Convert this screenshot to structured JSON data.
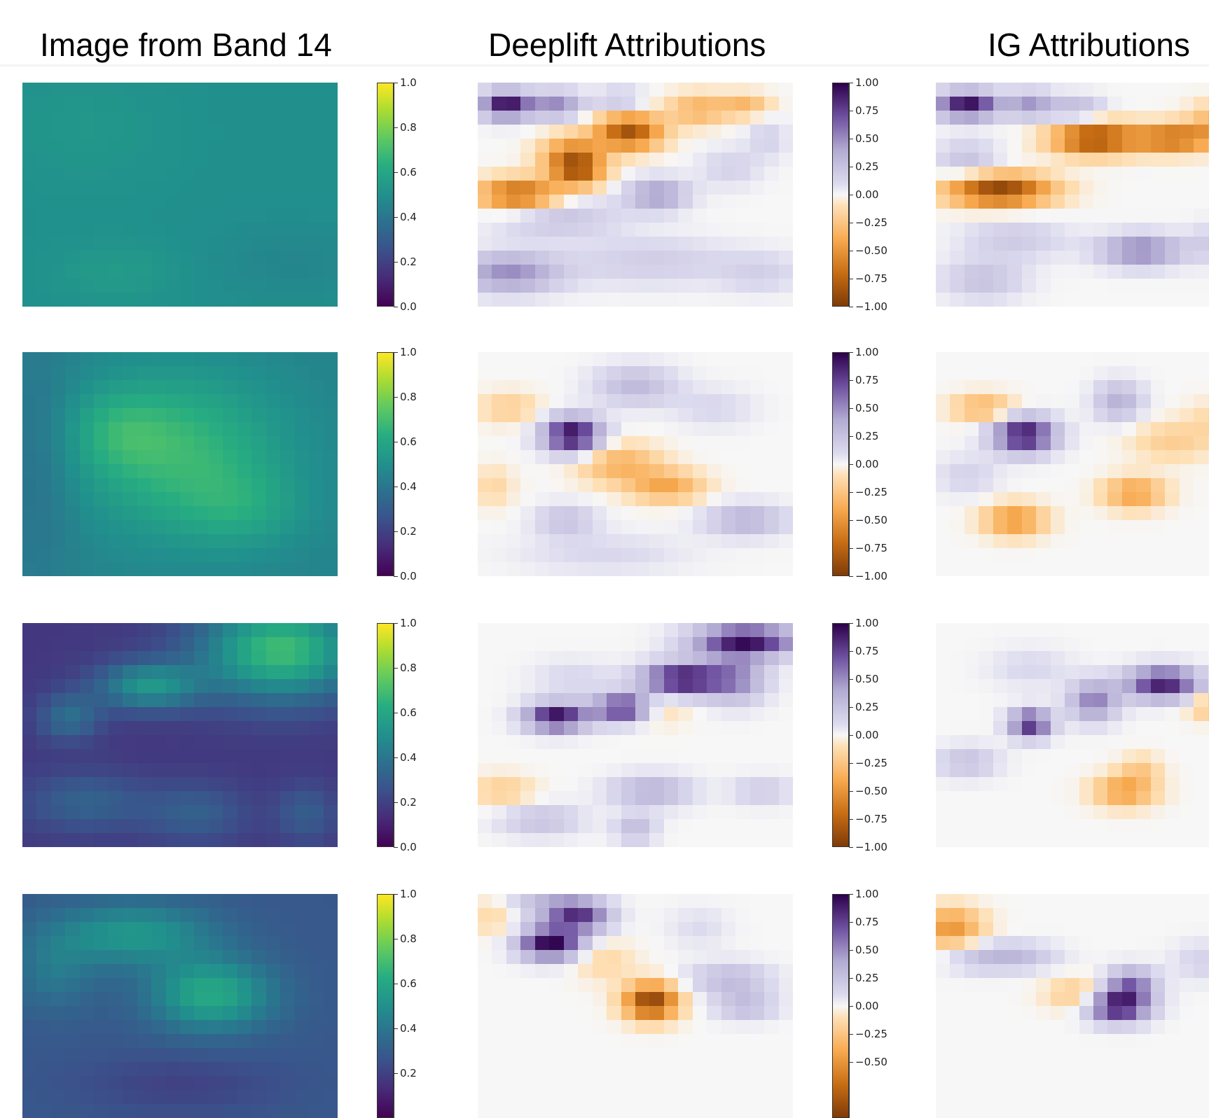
{
  "chart_data": {
    "type": "heatmap",
    "column_titles": [
      "Image from Band 14",
      "Deeplift Attributions",
      "IG Attributions"
    ],
    "colorbars": {
      "image": {
        "colormap": "viridis",
        "range": [
          0.0,
          1.0
        ],
        "tick_labels": [
          "0.0",
          "0.2",
          "0.4",
          "0.6",
          "0.8",
          "1.0"
        ]
      },
      "attribution": {
        "colormap": "PuOr",
        "range": [
          -1.0,
          1.0
        ],
        "tick_labels": [
          "−1.00",
          "−0.75",
          "−0.50",
          "−0.25",
          "0.00",
          "0.25",
          "0.50",
          "0.75",
          "1.00"
        ]
      }
    },
    "grid": {
      "cols": 22,
      "rows": 16
    },
    "rows": [
      {
        "image": {
          "base": 0.5,
          "blobs": [
            [
              0.3,
              0.85,
              3,
              1.5,
              0.05
            ],
            [
              0.2,
              0.2,
              4,
              3,
              0.03
            ],
            [
              0.85,
              0.8,
              4,
              2,
              -0.04
            ]
          ]
        },
        "deeplift": {
          "blobs": [
            [
              0.09,
              0.1,
              1.2,
              0.7,
              0.95
            ],
            [
              0.25,
              0.1,
              1.3,
              0.7,
              0.5
            ],
            [
              0.45,
              0.08,
              1.2,
              0.6,
              0.25
            ],
            [
              0.7,
              0.12,
              1.5,
              0.8,
              -0.35
            ],
            [
              0.85,
              0.1,
              1.2,
              0.6,
              -0.3
            ],
            [
              0.48,
              0.22,
              1.6,
              0.9,
              -0.85
            ],
            [
              0.3,
              0.33,
              1.5,
              1,
              -0.6
            ],
            [
              0.13,
              0.5,
              2,
              0.8,
              -0.75
            ],
            [
              0.32,
              0.4,
              1.2,
              0.8,
              -0.55
            ],
            [
              0.57,
              0.5,
              1.5,
              0.8,
              0.45
            ],
            [
              0.25,
              0.6,
              3,
              1,
              0.25
            ],
            [
              0.8,
              0.38,
              1.5,
              1,
              0.15
            ],
            [
              0.1,
              0.85,
              2.5,
              1,
              0.5
            ],
            [
              0.55,
              0.8,
              4,
              1.2,
              0.18
            ],
            [
              0.9,
              0.85,
              2,
              1,
              0.15
            ],
            [
              0.92,
              0.25,
              1,
              1,
              0.15
            ]
          ]
        },
        "ig": {
          "blobs": [
            [
              0.1,
              0.1,
              1.5,
              0.7,
              0.95
            ],
            [
              0.3,
              0.1,
              1.2,
              0.7,
              0.45
            ],
            [
              0.45,
              0.12,
              1.3,
              0.7,
              0.3
            ],
            [
              0.5,
              0.25,
              2,
              0.8,
              -0.9
            ],
            [
              0.75,
              0.25,
              2,
              0.7,
              -0.7
            ],
            [
              0.9,
              0.18,
              1.5,
              1,
              -0.35
            ],
            [
              0.2,
              0.48,
              2.5,
              0.8,
              -0.95
            ],
            [
              0.1,
              0.35,
              1.5,
              1,
              0.25
            ],
            [
              0.65,
              0.75,
              2,
              0.8,
              0.55
            ],
            [
              0.25,
              0.7,
              2.5,
              1,
              0.2
            ],
            [
              0.15,
              0.88,
              2,
              1,
              0.25
            ],
            [
              0.9,
              0.72,
              1.5,
              1,
              0.2
            ]
          ]
        }
      },
      {
        "image": {
          "base": 0.45,
          "blobs": [
            [
              0.5,
              0.45,
              5,
              4,
              0.22
            ],
            [
              0.3,
              0.35,
              2.5,
              2,
              0.1
            ],
            [
              0.7,
              0.7,
              3,
              2,
              0.1
            ],
            [
              0.05,
              0.5,
              2,
              6,
              -0.08
            ]
          ]
        },
        "deeplift": {
          "blobs": [
            [
              0.3,
              0.37,
              1.4,
              0.9,
              1.0
            ],
            [
              0.5,
              0.15,
              2,
              1,
              0.3
            ],
            [
              0.75,
              0.25,
              2,
              1,
              0.12
            ],
            [
              0.45,
              0.5,
              2,
              1,
              -0.35
            ],
            [
              0.6,
              0.6,
              1.8,
              0.8,
              -0.4
            ],
            [
              0.1,
              0.25,
              1.5,
              0.8,
              -0.2
            ],
            [
              0.28,
              0.75,
              1.5,
              0.8,
              0.25
            ],
            [
              0.85,
              0.75,
              2,
              0.8,
              0.35
            ],
            [
              0.4,
              0.9,
              4,
              1,
              0.12
            ],
            [
              0.05,
              0.6,
              1,
              1,
              -0.15
            ]
          ]
        },
        "ig": {
          "blobs": [
            [
              0.28,
              0.37,
              1.5,
              0.9,
              0.95
            ],
            [
              0.58,
              0.22,
              1.2,
              1,
              0.35
            ],
            [
              0.15,
              0.25,
              1.5,
              0.7,
              -0.35
            ],
            [
              0.63,
              0.63,
              1.5,
              0.8,
              -0.45
            ],
            [
              0.25,
              0.75,
              1.5,
              0.8,
              -0.5
            ],
            [
              0.75,
              0.4,
              2,
              1,
              -0.2
            ],
            [
              0.1,
              0.55,
              1.5,
              1,
              0.15
            ],
            [
              0.9,
              0.3,
              1.5,
              1,
              -0.15
            ]
          ]
        }
      },
      {
        "image": {
          "base": 0.17,
          "blobs": [
            [
              0.82,
              0.12,
              4,
              2.5,
              0.52
            ],
            [
              0.4,
              0.28,
              2.5,
              1.2,
              0.35
            ],
            [
              0.15,
              0.42,
              1.5,
              1.2,
              0.2
            ],
            [
              0.2,
              0.8,
              3,
              1.5,
              0.15
            ],
            [
              0.55,
              0.85,
              2.5,
              1.5,
              0.14
            ],
            [
              0.9,
              0.85,
              1.5,
              1.5,
              0.13
            ]
          ]
        },
        "deeplift": {
          "blobs": [
            [
              0.85,
              0.08,
              2.5,
              0.8,
              0.95
            ],
            [
              0.65,
              0.25,
              2,
              0.8,
              0.95
            ],
            [
              0.47,
              0.38,
              1.5,
              0.7,
              0.95
            ],
            [
              0.25,
              0.42,
              1.5,
              0.7,
              0.95
            ],
            [
              0.82,
              0.25,
              1.5,
              1.2,
              0.45
            ],
            [
              0.55,
              0.38,
              1.5,
              0.8,
              -0.3
            ],
            [
              0.3,
              0.25,
              2,
              1,
              0.12
            ],
            [
              0.55,
              0.75,
              2,
              0.8,
              0.35
            ],
            [
              0.08,
              0.75,
              1.5,
              0.8,
              -0.2
            ],
            [
              0.2,
              0.88,
              2,
              0.8,
              0.25
            ],
            [
              0.5,
              0.92,
              1,
              0.7,
              0.3
            ],
            [
              0.9,
              0.75,
              1.5,
              0.7,
              0.2
            ]
          ]
        },
        "ig": {
          "blobs": [
            [
              0.72,
              0.27,
              1.8,
              0.8,
              0.9
            ],
            [
              0.5,
              0.35,
              1.2,
              1,
              0.55
            ],
            [
              0.3,
              0.45,
              1,
              0.7,
              0.85
            ],
            [
              0.88,
              0.37,
              1.2,
              0.7,
              -0.3
            ],
            [
              0.6,
              0.75,
              1.5,
              0.8,
              -0.45
            ],
            [
              0.1,
              0.62,
              1.5,
              0.8,
              0.25
            ],
            [
              0.65,
              0.65,
              1,
              0.7,
              -0.2
            ],
            [
              0.3,
              0.2,
              2,
              1,
              0.12
            ]
          ]
        }
      },
      {
        "image": {
          "base": 0.28,
          "blobs": [
            [
              0.35,
              0.18,
              4,
              1.6,
              0.25
            ],
            [
              0.6,
              0.45,
              3,
              1.8,
              0.33
            ],
            [
              0.1,
              0.35,
              2,
              2,
              0.12
            ],
            [
              0.5,
              0.85,
              5,
              1.5,
              -0.08
            ]
          ]
        },
        "deeplift": {
          "blobs": [
            [
              0.23,
              0.22,
              1.5,
              0.8,
              1.0
            ],
            [
              0.32,
              0.1,
              1.5,
              0.8,
              0.75
            ],
            [
              0.22,
              0.05,
              2,
              0.6,
              0.3
            ],
            [
              0.55,
              0.48,
              1.3,
              0.9,
              -0.95
            ],
            [
              0.8,
              0.38,
              2,
              0.8,
              0.3
            ],
            [
              0.85,
              0.5,
              1.5,
              0.7,
              0.3
            ],
            [
              0.4,
              0.3,
              1.5,
              1,
              -0.15
            ],
            [
              0.05,
              0.1,
              1.2,
              1,
              -0.15
            ],
            [
              0.7,
              0.15,
              1.5,
              1,
              0.1
            ]
          ]
        },
        "ig": {
          "blobs": [
            [
              0.58,
              0.5,
              1.5,
              0.8,
              0.95
            ],
            [
              0.62,
              0.4,
              1.2,
              0.8,
              0.55
            ],
            [
              0.05,
              0.15,
              1.5,
              1,
              -0.5
            ],
            [
              0.25,
              0.28,
              2,
              0.7,
              0.3
            ],
            [
              0.45,
              0.45,
              1.5,
              0.8,
              -0.25
            ],
            [
              0.12,
              0.28,
              1.5,
              0.8,
              0.15
            ],
            [
              0.85,
              0.3,
              1.5,
              1,
              0.15
            ]
          ]
        }
      }
    ]
  }
}
